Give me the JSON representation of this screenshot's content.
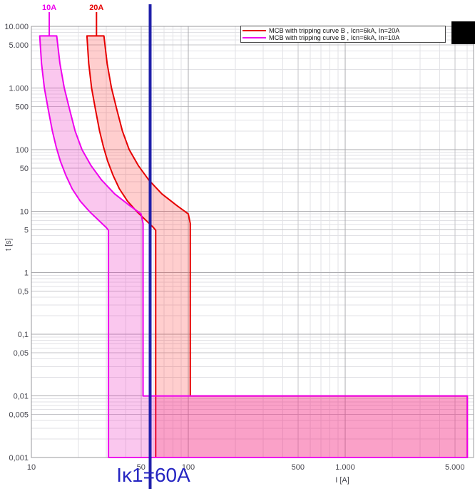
{
  "chart_data": {
    "type": "line",
    "title": "",
    "xlabel": "I [A]",
    "ylabel": "t [s]",
    "x_scale": "log",
    "y_scale": "log",
    "xlim": [
      10,
      6580
    ],
    "ylim": [
      0.001,
      10000
    ],
    "grid": true,
    "legend_position": "top-right-inside",
    "x_ticks": [
      {
        "v": 10,
        "label": "10"
      },
      {
        "v": 50,
        "label": "50"
      },
      {
        "v": 100,
        "label": "100"
      },
      {
        "v": 500,
        "label": "500"
      },
      {
        "v": 1000,
        "label": "1.000"
      },
      {
        "v": 5000,
        "label": "5.000"
      }
    ],
    "y_ticks": [
      {
        "v": 10000,
        "label": "10.000"
      },
      {
        "v": 5000,
        "label": "5.000"
      },
      {
        "v": 1000,
        "label": "1.000"
      },
      {
        "v": 500,
        "label": "500"
      },
      {
        "v": 100,
        "label": "100"
      },
      {
        "v": 50,
        "label": "50"
      },
      {
        "v": 10,
        "label": "10"
      },
      {
        "v": 5,
        "label": "5"
      },
      {
        "v": 1,
        "label": "1"
      },
      {
        "v": 0.5,
        "label": "0,5"
      },
      {
        "v": 0.1,
        "label": "0,1"
      },
      {
        "v": 0.05,
        "label": "0,05"
      },
      {
        "v": 0.01,
        "label": "0,01"
      },
      {
        "v": 0.005,
        "label": "0,005"
      },
      {
        "v": 0.001,
        "label": "0,001"
      }
    ],
    "series": [
      {
        "name": "MCB with tripping curve B , Icn=6kA,  In=20A",
        "curve_label": "20A",
        "in_amps": 20,
        "stroke": "#e60000",
        "fill": "rgba(255,30,30,0.22)",
        "label_x_amps": 26
      },
      {
        "name": "MCB with tripping curve B , Icn=6kA,  In=10A",
        "curve_label": "10A",
        "in_amps": 10,
        "stroke": "#ee00ee",
        "fill": "rgba(236,20,185,0.24)",
        "label_x_amps": 13
      }
    ],
    "band_shape": {
      "t_top": 7000,
      "max_multiples": [
        [
          1.45,
          7000
        ],
        [
          1.52,
          2500
        ],
        [
          1.62,
          1000
        ],
        [
          1.75,
          450
        ],
        [
          1.9,
          200
        ],
        [
          2.1,
          100
        ],
        [
          2.4,
          55
        ],
        [
          2.8,
          32
        ],
        [
          3.4,
          19
        ],
        [
          4.2,
          12.5
        ],
        [
          5.0,
          9
        ],
        [
          5.15,
          6.3
        ]
      ],
      "min_multiples": [
        [
          1.13,
          7000
        ],
        [
          1.16,
          2500
        ],
        [
          1.21,
          1000
        ],
        [
          1.28,
          450
        ],
        [
          1.36,
          200
        ],
        [
          1.44,
          110
        ],
        [
          1.53,
          65
        ],
        [
          1.66,
          38
        ],
        [
          1.82,
          23
        ],
        [
          2.05,
          14.5
        ],
        [
          2.35,
          9.8
        ],
        [
          2.7,
          7.0
        ],
        [
          3.0,
          5.4
        ],
        [
          3.1,
          4.9
        ]
      ],
      "magnetic_min_multiple": 3.1,
      "magnetic_max_multiple": 5.15,
      "instant_right_amps": 6000,
      "instant_t_top": 0.01,
      "instant_t_bottom": 0.001
    },
    "fault_marker": {
      "label": "Iκ1=60A",
      "x_amps": 57,
      "line_color": "#1f1faa",
      "label_color": "#2525c2"
    }
  }
}
